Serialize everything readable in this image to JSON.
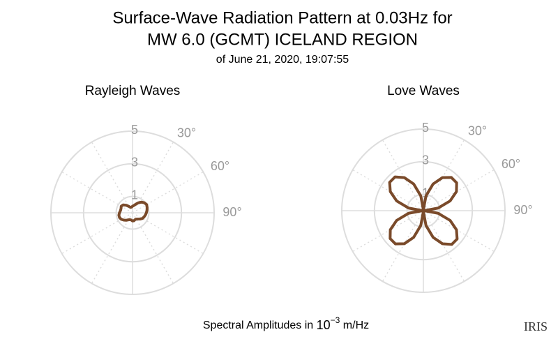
{
  "title_lines": [
    "Surface-Wave Radiation Pattern at 0.03Hz for",
    "MW 6.0 (GCMT) ICELAND REGION"
  ],
  "subtitle": "of June 21, 2020, 19:07:55",
  "footer": {
    "text": "Spectral Amplitudes in ",
    "base": "10",
    "exponent": "−3",
    "unit": " m/Hz"
  },
  "logo": "IRIS",
  "chart_data": [
    {
      "type": "polar",
      "title": "Rayleigh Waves",
      "color": "#7a4a2a",
      "rlim": [
        0,
        5
      ],
      "rticks": [
        1,
        3,
        5
      ],
      "thetaticks": [
        {
          "value": 30,
          "label": "30°"
        },
        {
          "value": 60,
          "label": "60°"
        },
        {
          "value": 90,
          "label": "90°"
        }
      ],
      "theta": [
        0,
        10,
        20,
        30,
        40,
        50,
        60,
        70,
        80,
        90,
        100,
        110,
        120,
        130,
        140,
        150,
        160,
        170,
        180,
        190,
        200,
        210,
        220,
        230,
        240,
        250,
        260,
        270,
        280,
        290,
        300,
        310,
        320,
        330,
        340,
        350
      ],
      "values": [
        0.4,
        0.45,
        0.55,
        0.7,
        0.85,
        0.95,
        1.0,
        0.95,
        0.9,
        0.85,
        0.8,
        0.75,
        0.7,
        0.6,
        0.5,
        0.45,
        0.45,
        0.5,
        0.5,
        0.45,
        0.45,
        0.5,
        0.6,
        0.7,
        0.8,
        0.85,
        0.85,
        0.8,
        0.75,
        0.75,
        0.8,
        0.75,
        0.6,
        0.45,
        0.35,
        0.35
      ]
    },
    {
      "type": "polar",
      "title": "Love Waves",
      "color": "#7a4a2a",
      "rlim": [
        0,
        5
      ],
      "rticks": [
        1,
        3,
        5
      ],
      "thetaticks": [
        {
          "value": 30,
          "label": "30°"
        },
        {
          "value": 60,
          "label": "60°"
        },
        {
          "value": 90,
          "label": "90°"
        }
      ],
      "theta": [
        0,
        10,
        20,
        30,
        40,
        50,
        60,
        70,
        80,
        90,
        100,
        110,
        120,
        130,
        140,
        150,
        160,
        170,
        180,
        190,
        200,
        210,
        220,
        230,
        240,
        250,
        260,
        270,
        280,
        290,
        300,
        310,
        320,
        330,
        340,
        350
      ],
      "values": [
        0.05,
        0.92,
        1.74,
        2.34,
        2.66,
        2.66,
        2.34,
        1.74,
        0.92,
        0.05,
        0.92,
        1.74,
        2.34,
        2.7,
        2.7,
        2.34,
        1.74,
        0.92,
        0.05,
        0.92,
        1.74,
        2.34,
        2.66,
        2.66,
        2.34,
        1.74,
        0.92,
        0.05,
        0.92,
        1.74,
        2.34,
        2.7,
        2.7,
        2.34,
        1.74,
        0.92
      ]
    }
  ]
}
